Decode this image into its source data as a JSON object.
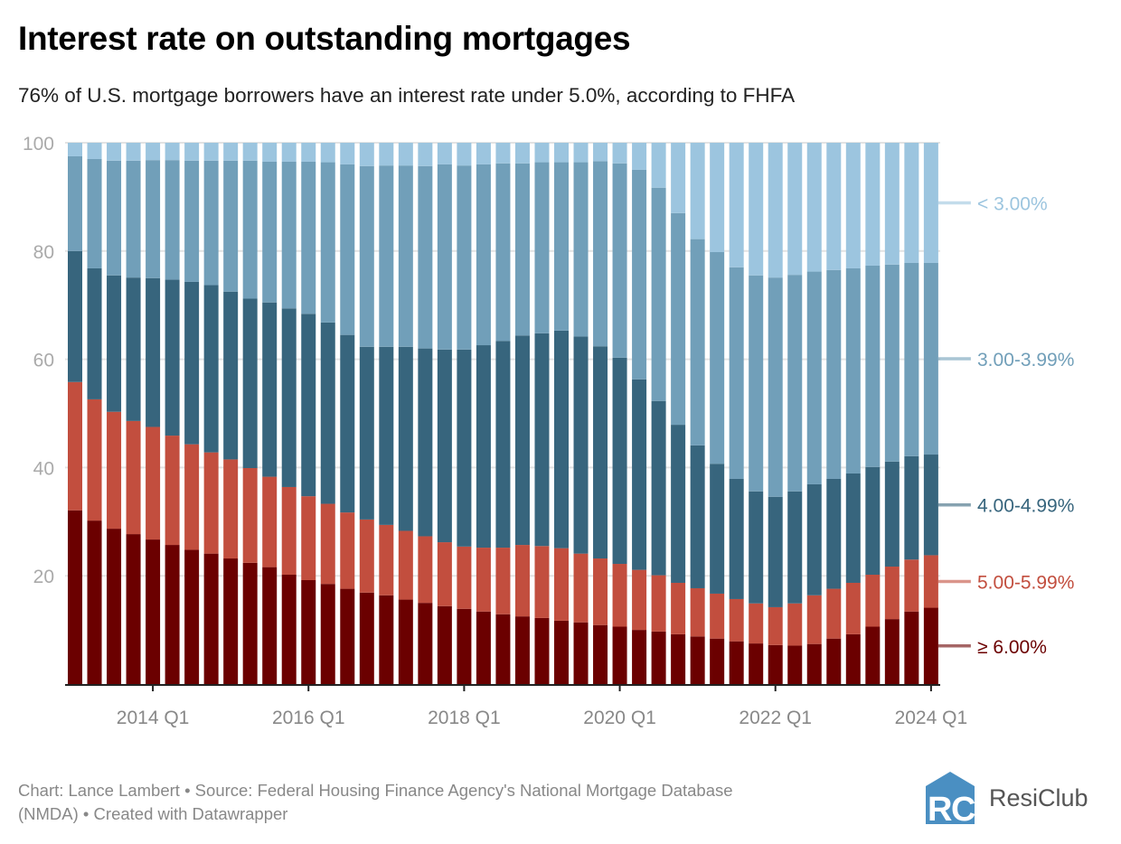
{
  "title": "Interest rate on outstanding mortgages",
  "subtitle": "76% of U.S. mortgage borrowers have an interest rate under 5.0%, according to FHFA",
  "footer": {
    "line1": "Chart: Lance Lambert • Source: Federal Housing Finance Agency's National Mortgage Database",
    "line2": "(NMDA) • Created with Datawrapper"
  },
  "logo": {
    "text": "ResiClub",
    "mark": "RC",
    "color": "#4a8fc2"
  },
  "chart_data": {
    "type": "bar",
    "stacked": true,
    "title": "Interest rate on outstanding mortgages",
    "xlabel": "",
    "ylabel": "",
    "ylim": [
      0,
      100
    ],
    "yticks": [
      20,
      40,
      60,
      80,
      100
    ],
    "grid": true,
    "legend_placement": "right (inline labels)",
    "x_first": "2013 Q1",
    "x_last": "2024 Q1",
    "n_quarters": 45,
    "xtick_labels": [
      {
        "index": 4,
        "label": "2014 Q1"
      },
      {
        "index": 12,
        "label": "2016 Q1"
      },
      {
        "index": 20,
        "label": "2018 Q1"
      },
      {
        "index": 28,
        "label": "2020 Q1"
      },
      {
        "index": 36,
        "label": "2022 Q1"
      },
      {
        "index": 44,
        "label": "2024 Q1"
      }
    ],
    "series": [
      {
        "name": "≥ 6.00%",
        "color": "#6b0000",
        "values": [
          32.1,
          30.2,
          28.7,
          27.7,
          26.7,
          25.7,
          24.8,
          24.1,
          23.2,
          22.4,
          21.6,
          20.2,
          19.2,
          18.5,
          17.6,
          16.9,
          16.4,
          15.6,
          15.0,
          14.4,
          13.9,
          13.4,
          12.9,
          12.5,
          12.2,
          11.7,
          11.4,
          10.9,
          10.6,
          10.0,
          9.7,
          9.2,
          8.8,
          8.4,
          7.9,
          7.5,
          7.2,
          7.1,
          7.4,
          8.4,
          9.2,
          10.6,
          12.0,
          13.4,
          14.1
        ]
      },
      {
        "name": "5.00-5.99%",
        "color": "#c24e3e",
        "values": [
          23.7,
          22.4,
          21.6,
          20.9,
          20.8,
          20.2,
          19.5,
          18.7,
          18.3,
          17.5,
          16.7,
          16.2,
          15.5,
          14.8,
          14.1,
          13.5,
          13.0,
          12.7,
          12.3,
          11.8,
          11.5,
          11.8,
          12.3,
          13.2,
          13.3,
          13.4,
          12.7,
          12.3,
          11.6,
          11.1,
          10.4,
          9.5,
          8.9,
          8.3,
          7.8,
          7.4,
          7.0,
          7.8,
          9.0,
          9.2,
          9.5,
          9.6,
          9.7,
          9.6,
          9.7
        ]
      },
      {
        "name": "4.00-4.99%",
        "color": "#37657d",
        "values": [
          24.2,
          24.2,
          25.2,
          26.5,
          27.5,
          28.8,
          30.0,
          30.9,
          31.0,
          31.3,
          32.2,
          33.0,
          33.7,
          33.5,
          32.8,
          31.9,
          32.9,
          34.0,
          34.7,
          35.6,
          36.4,
          37.4,
          38.2,
          38.7,
          39.3,
          40.2,
          40.1,
          39.2,
          38.1,
          35.2,
          32.2,
          29.2,
          26.4,
          24.0,
          22.2,
          20.7,
          20.4,
          20.7,
          20.5,
          20.3,
          20.2,
          19.9,
          19.4,
          19.1,
          18.6
        ]
      },
      {
        "name": "3.00-3.99%",
        "color": "#719fb9",
        "values": [
          17.5,
          20.2,
          21.2,
          21.6,
          21.8,
          22.1,
          22.4,
          23.0,
          24.2,
          25.5,
          26.0,
          27.1,
          28.1,
          29.6,
          31.5,
          33.4,
          33.5,
          33.5,
          33.7,
          34.2,
          34.0,
          33.4,
          32.8,
          31.8,
          31.6,
          31.1,
          32.2,
          34.2,
          35.9,
          38.7,
          39.4,
          39.1,
          38.1,
          39.1,
          39.1,
          39.9,
          40.5,
          40.0,
          39.3,
          38.6,
          37.9,
          37.2,
          36.4,
          35.7,
          35.4
        ]
      },
      {
        "name": "< 3.00%",
        "color": "#9cc5df",
        "values": [
          2.5,
          3.0,
          3.3,
          3.3,
          3.2,
          3.2,
          3.3,
          3.3,
          3.3,
          3.3,
          3.5,
          3.5,
          3.5,
          3.6,
          4.0,
          4.3,
          4.2,
          4.2,
          4.3,
          4.0,
          4.2,
          4.0,
          3.8,
          3.8,
          3.6,
          3.6,
          3.6,
          3.4,
          3.8,
          5.0,
          8.3,
          13.0,
          17.8,
          20.2,
          23.0,
          24.5,
          24.9,
          24.4,
          23.8,
          23.5,
          23.2,
          22.7,
          22.5,
          22.2,
          22.2
        ]
      }
    ],
    "label_colors": {
      "< 3.00%": "#9cc5df",
      "3.00-3.99%": "#719fb9",
      "4.00-4.99%": "#37657d",
      "5.00-5.99%": "#c24e3e",
      "≥ 6.00%": "#6b0000"
    }
  }
}
